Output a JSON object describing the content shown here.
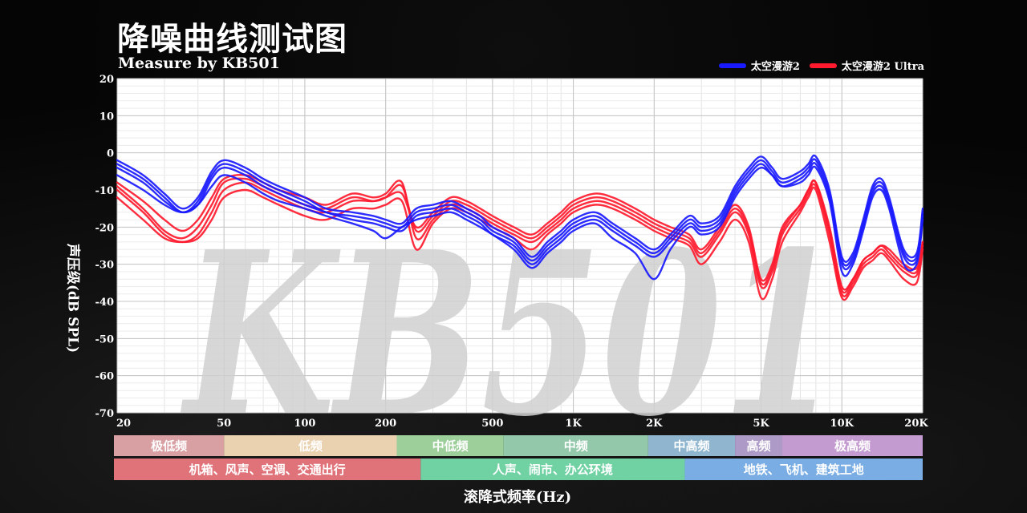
{
  "title": "降噪曲线测试图",
  "subtitle": "Measure by KB501",
  "watermark": "KB501",
  "xlabel": "滚降式频率(Hz)",
  "ylabel": "声压级(dB SPL)",
  "legend": [
    {
      "name": "太空漫游2",
      "color": "#1a1aff"
    },
    {
      "name": "太空漫游2 Ultra",
      "color": "#ff1a2e"
    }
  ],
  "frequency_bands": [
    {
      "label": "极低频",
      "from": 20,
      "to": 50,
      "color": "#d9a0a4"
    },
    {
      "label": "低频",
      "from": 50,
      "to": 220,
      "color": "#ead1b0"
    },
    {
      "label": "中低频",
      "from": 220,
      "to": 550,
      "color": "#9ccf99"
    },
    {
      "label": "中频",
      "from": 550,
      "to": 1900,
      "color": "#93c9aa"
    },
    {
      "label": "中高频",
      "from": 1900,
      "to": 4000,
      "color": "#8fb5cf"
    },
    {
      "label": "高频",
      "from": 4000,
      "to": 6000,
      "color": "#ad9ac7"
    },
    {
      "label": "极高频",
      "from": 6000,
      "to": 20000,
      "color": "#c49bd0"
    }
  ],
  "scenario_bands": [
    {
      "label": "机箱、风声、空调、交通出行",
      "from": 20,
      "to": 270,
      "color": "#e07279"
    },
    {
      "label": "人声、闹市、办公环境",
      "from": 270,
      "to": 2600,
      "color": "#70d1a3"
    },
    {
      "label": "地铁、飞机、建筑工地",
      "from": 2600,
      "to": 20000,
      "color": "#79ade3"
    }
  ],
  "chart_data": {
    "type": "line",
    "x_scale": "log",
    "xlim": [
      20,
      20000
    ],
    "ylim": [
      -70,
      20
    ],
    "x_ticks": [
      20,
      50,
      100,
      200,
      500,
      1000,
      2000,
      5000,
      10000,
      20000
    ],
    "x_tick_labels": [
      "20",
      "50",
      "100",
      "200",
      "500",
      "1K",
      "2K",
      "5K",
      "10K",
      "20K"
    ],
    "y_ticks": [
      20,
      10,
      0,
      -10,
      -20,
      -30,
      -40,
      -50,
      -60,
      -70
    ],
    "grid": true,
    "x": [
      20,
      25,
      30,
      35,
      40,
      45,
      50,
      60,
      70,
      80,
      100,
      120,
      150,
      180,
      200,
      230,
      260,
      300,
      350,
      400,
      450,
      500,
      600,
      700,
      800,
      900,
      1000,
      1200,
      1400,
      1700,
      2000,
      2300,
      2700,
      3000,
      3500,
      4000,
      4500,
      5000,
      5500,
      6000,
      7000,
      7500,
      8000,
      9000,
      10000,
      11000,
      12000,
      13000,
      14000,
      15000,
      17000,
      19000,
      20000
    ],
    "series": [
      {
        "name": "太空漫游2",
        "color": "#1a1aff",
        "values": [
          -2,
          -6,
          -11,
          -15,
          -12,
          -5,
          -2,
          -4,
          -7,
          -9,
          -12,
          -15,
          -16,
          -17,
          -18,
          -19,
          -15,
          -14,
          -13,
          -15,
          -17,
          -20,
          -23,
          -28,
          -24,
          -21,
          -18,
          -16,
          -19,
          -23,
          -26,
          -22,
          -17,
          -19,
          -17,
          -9,
          -4,
          -1,
          -4,
          -7,
          -5,
          -3,
          -1,
          -10,
          -28,
          -27,
          -18,
          -9,
          -7,
          -12,
          -26,
          -27,
          -15
        ]
      },
      {
        "name": "太空漫游2",
        "color": "#1a1aff",
        "values": [
          -3,
          -7,
          -12,
          -16,
          -13,
          -6,
          -3,
          -5,
          -8,
          -10,
          -13,
          -16,
          -17,
          -18,
          -19,
          -20,
          -16,
          -15,
          -14,
          -16,
          -18,
          -21,
          -24,
          -29,
          -25,
          -22,
          -19,
          -17,
          -20,
          -24,
          -27,
          -23,
          -18,
          -20,
          -18,
          -10,
          -5,
          -2,
          -5,
          -8,
          -6,
          -4,
          -2,
          -11,
          -29,
          -28,
          -19,
          -10,
          -8,
          -13,
          -27,
          -28,
          -16
        ]
      },
      {
        "name": "太空漫游2",
        "color": "#1a1aff",
        "values": [
          -4,
          -8,
          -13,
          -16,
          -14,
          -7,
          -4,
          -6,
          -9,
          -11,
          -14,
          -16,
          -18,
          -19,
          -20,
          -21,
          -17,
          -16,
          -15,
          -17,
          -19,
          -22,
          -25,
          -30,
          -26,
          -23,
          -20,
          -18,
          -21,
          -25,
          -28,
          -24,
          -19,
          -21,
          -19,
          -11,
          -6,
          -3,
          -6,
          -9,
          -7,
          -5,
          -3,
          -12,
          -30,
          -29,
          -20,
          -11,
          -9,
          -14,
          -28,
          -29,
          -17
        ]
      },
      {
        "name": "太空漫游2",
        "color": "#1a1aff",
        "values": [
          -6,
          -10,
          -14,
          -16,
          -14,
          -9,
          -6,
          -8,
          -11,
          -13,
          -15,
          -17,
          -19,
          -21,
          -23,
          -20,
          -18,
          -17,
          -16,
          -18,
          -20,
          -22,
          -26,
          -31,
          -27,
          -24,
          -21,
          -19,
          -23,
          -27,
          -34,
          -26,
          -20,
          -22,
          -20,
          -12,
          -7,
          -4,
          -6,
          -9,
          -8,
          -6,
          -4,
          -13,
          -32,
          -30,
          -21,
          -12,
          -10,
          -15,
          -30,
          -30,
          -18
        ]
      },
      {
        "name": "太空漫游2 Ultra",
        "color": "#ff1a2e",
        "values": [
          -10,
          -16,
          -22,
          -24,
          -22,
          -16,
          -10,
          -8,
          -10,
          -12,
          -15,
          -16,
          -13,
          -13,
          -12,
          -11,
          -20,
          -16,
          -12,
          -13,
          -15,
          -17,
          -20,
          -22,
          -19,
          -16,
          -13,
          -11,
          -12,
          -15,
          -18,
          -20,
          -22,
          -26,
          -20,
          -14,
          -20,
          -34,
          -30,
          -20,
          -14,
          -10,
          -8,
          -20,
          -36,
          -34,
          -29,
          -27,
          -25,
          -26,
          -30,
          -31,
          -24
        ]
      },
      {
        "name": "太空漫游2 Ultra",
        "color": "#ff1a2e",
        "values": [
          -8,
          -13,
          -18,
          -21,
          -18,
          -12,
          -7,
          -6,
          -8,
          -10,
          -12,
          -14,
          -11,
          -12,
          -11,
          -8,
          -23,
          -18,
          -14,
          -15,
          -17,
          -19,
          -22,
          -24,
          -21,
          -18,
          -15,
          -13,
          -14,
          -17,
          -20,
          -22,
          -24,
          -28,
          -22,
          -16,
          -22,
          -36,
          -32,
          -22,
          -15,
          -11,
          -9,
          -22,
          -38,
          -35,
          -30,
          -28,
          -26,
          -28,
          -32,
          -33,
          -25
        ]
      },
      {
        "name": "太空漫游2 Ultra",
        "color": "#ff1a2e",
        "values": [
          -12,
          -18,
          -23,
          -24,
          -23,
          -18,
          -12,
          -10,
          -12,
          -14,
          -17,
          -18,
          -15,
          -15,
          -14,
          -13,
          -26,
          -19,
          -15,
          -16,
          -18,
          -20,
          -23,
          -26,
          -22,
          -19,
          -16,
          -14,
          -15,
          -18,
          -21,
          -23,
          -25,
          -30,
          -24,
          -18,
          -24,
          -39,
          -34,
          -24,
          -16,
          -12,
          -10,
          -24,
          -39,
          -36,
          -31,
          -29,
          -27,
          -29,
          -34,
          -35,
          -26
        ]
      },
      {
        "name": "太空漫游2 Ultra",
        "color": "#ff1a2e",
        "values": [
          -9,
          -15,
          -21,
          -23,
          -20,
          -14,
          -8,
          -7,
          -9,
          -11,
          -14,
          -15,
          -12,
          -13,
          -12,
          -9,
          -21,
          -17,
          -13,
          -14,
          -16,
          -18,
          -21,
          -23,
          -20,
          -17,
          -14,
          -12,
          -13,
          -16,
          -19,
          -21,
          -23,
          -27,
          -21,
          -15,
          -21,
          -35,
          -31,
          -21,
          -14,
          -10,
          -8,
          -21,
          -37,
          -34,
          -29,
          -27,
          -25,
          -27,
          -31,
          -32,
          -24
        ]
      }
    ]
  }
}
